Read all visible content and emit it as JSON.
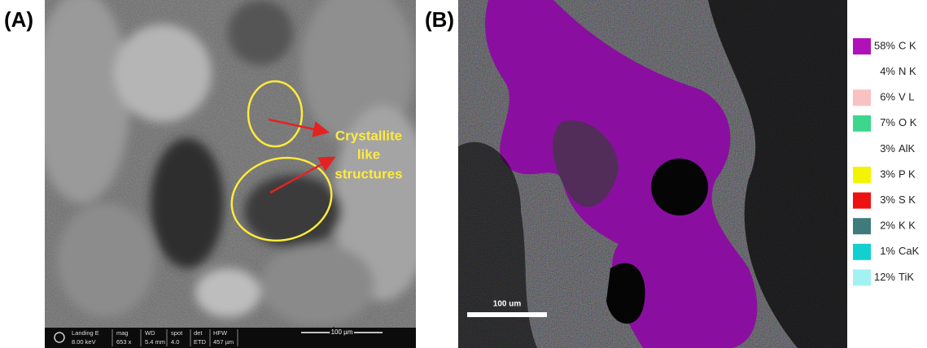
{
  "panel_a": {
    "label": "(A)",
    "annotation": [
      "Crystallite",
      "like",
      "structures"
    ],
    "info_bar": [
      {
        "name": "Landing E",
        "value": "8.00 keV"
      },
      {
        "name": "mag",
        "value": "653 x"
      },
      {
        "name": "WD",
        "value": "5.4 mm"
      },
      {
        "name": "spot",
        "value": "4.0"
      },
      {
        "name": "det",
        "value": "ETD"
      },
      {
        "name": "HFW",
        "value": "457 µm"
      }
    ],
    "scale_bar": "100 µm"
  },
  "panel_b": {
    "label": "(B)",
    "scale_bar": "100 um",
    "legend": [
      {
        "percent": "58%",
        "element": "C K",
        "color": "#b012b8"
      },
      {
        "percent": "4%",
        "element": "N K",
        "color": "#ffffff"
      },
      {
        "percent": "6%",
        "element": "V L",
        "color": "#f8c2c2"
      },
      {
        "percent": "7%",
        "element": "O K",
        "color": "#3cd68c"
      },
      {
        "percent": "3%",
        "element": "AlK",
        "color": "#ffffff"
      },
      {
        "percent": "3%",
        "element": "P K",
        "color": "#f4f400"
      },
      {
        "percent": "3%",
        "element": "S K",
        "color": "#ee1111"
      },
      {
        "percent": "2%",
        "element": "K K",
        "color": "#3f7b7b"
      },
      {
        "percent": "1%",
        "element": "CaK",
        "color": "#12d0d0"
      },
      {
        "percent": "12%",
        "element": "TiK",
        "color": "#a2f2f2"
      }
    ]
  }
}
